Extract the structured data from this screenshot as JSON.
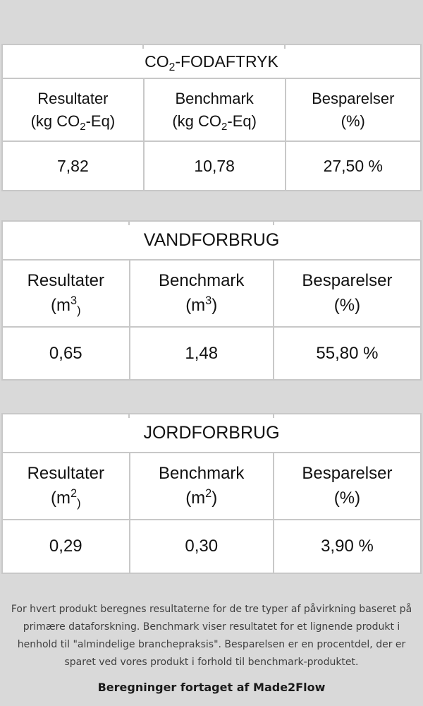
{
  "page": {
    "background_color": "#d9d9d9",
    "table_border_color": "#c8c8c8"
  },
  "tables": [
    {
      "id": "co2-footprint",
      "title_segments": [
        {
          "t": "CO"
        },
        {
          "t": "2",
          "v": "sub"
        },
        {
          "t": "-FODAFTRYK"
        }
      ],
      "columns": [
        {
          "name": "Resultater",
          "unit_segments": [
            {
              "t": "(kg CO"
            },
            {
              "t": "2",
              "v": "sub"
            },
            {
              "t": "-Eq)"
            }
          ]
        },
        {
          "name": "Benchmark",
          "unit_segments": [
            {
              "t": "(kg CO"
            },
            {
              "t": "2",
              "v": "sub"
            },
            {
              "t": "-Eq)"
            }
          ]
        },
        {
          "name": "Besparelser",
          "unit_segments": [
            {
              "t": "(%)"
            }
          ]
        }
      ],
      "values": [
        "7,82",
        "10,78",
        "27,50 %"
      ]
    },
    {
      "id": "water-usage",
      "title_segments": [
        {
          "t": "VANDFORBRUG"
        }
      ],
      "columns": [
        {
          "name": "Resultater",
          "unit_segments": [
            {
              "t": "(m"
            },
            {
              "t": "3",
              "v": "sup"
            },
            {
              "t": ")",
              "v": "sub"
            }
          ]
        },
        {
          "name": "Benchmark",
          "unit_segments": [
            {
              "t": "(m"
            },
            {
              "t": "3",
              "v": "sup"
            },
            {
              "t": ")"
            }
          ]
        },
        {
          "name": "Besparelser",
          "unit_segments": [
            {
              "t": "(%)"
            }
          ]
        }
      ],
      "values": [
        "0,65",
        "1,48",
        "55,80 %"
      ]
    },
    {
      "id": "land-usage",
      "title_segments": [
        {
          "t": "JORDFORBRUG"
        }
      ],
      "columns": [
        {
          "name": "Resultater",
          "unit_segments": [
            {
              "t": "(m"
            },
            {
              "t": "2",
              "v": "sup"
            },
            {
              "t": ")",
              "v": "sub"
            }
          ]
        },
        {
          "name": "Benchmark",
          "unit_segments": [
            {
              "t": "(m"
            },
            {
              "t": "2",
              "v": "sup"
            },
            {
              "t": ")"
            }
          ]
        },
        {
          "name": "Besparelser",
          "unit_segments": [
            {
              "t": "(%)"
            }
          ]
        }
      ],
      "values": [
        "0,29",
        "0,30",
        "3,90 %"
      ]
    }
  ],
  "footer": {
    "description": "For hvert produkt beregnes resultaterne for de tre typer af påvirkning baseret på primære dataforskning. Benchmark viser resultatet for et lignende produkt i henhold til \"almindelige branchepraksis\". Besparelsen er en procentdel, der er sparet ved vores produkt i forhold til benchmark-produktet.",
    "credit": "Beregninger fortaget af Made2Flow"
  }
}
